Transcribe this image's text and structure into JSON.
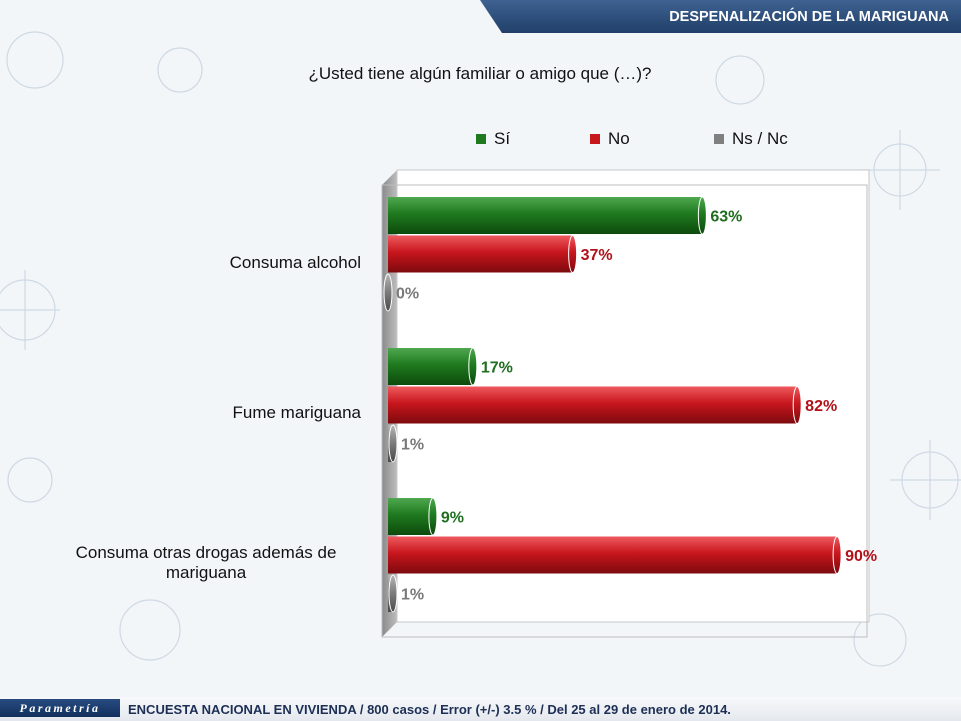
{
  "header": {
    "title": "DESPENALIZACIÓN DE LA MARIGUANA"
  },
  "chart_data": {
    "type": "bar",
    "orientation": "horizontal",
    "title": "¿Usted tiene algún familiar o amigo que (…)?",
    "categories": [
      "Consuma alcohol",
      "Fume mariguana",
      "Consuma otras drogas además de mariguana"
    ],
    "series": [
      {
        "name": "Sí",
        "color": "#1f7a1f",
        "values": [
          63,
          17,
          9
        ]
      },
      {
        "name": "No",
        "color": "#c8161d",
        "values": [
          37,
          82,
          90
        ]
      },
      {
        "name": "Ns / Nc",
        "color": "#808080",
        "values": [
          0,
          1,
          1
        ]
      }
    ],
    "value_labels": [
      [
        "63%",
        "37%",
        "0%"
      ],
      [
        "17%",
        "82%",
        "1%"
      ],
      [
        "9%",
        "90%",
        "1%"
      ]
    ],
    "xlim": [
      0,
      100
    ],
    "value_format": "percent",
    "legend_position": "top",
    "grid": false
  },
  "footer": {
    "logo": "Parametría",
    "note": "ENCUESTA NACIONAL EN VIVIENDA / 800 casos / Error (+/-) 3.5 % / Del 25 al 29 de enero de 2014."
  }
}
